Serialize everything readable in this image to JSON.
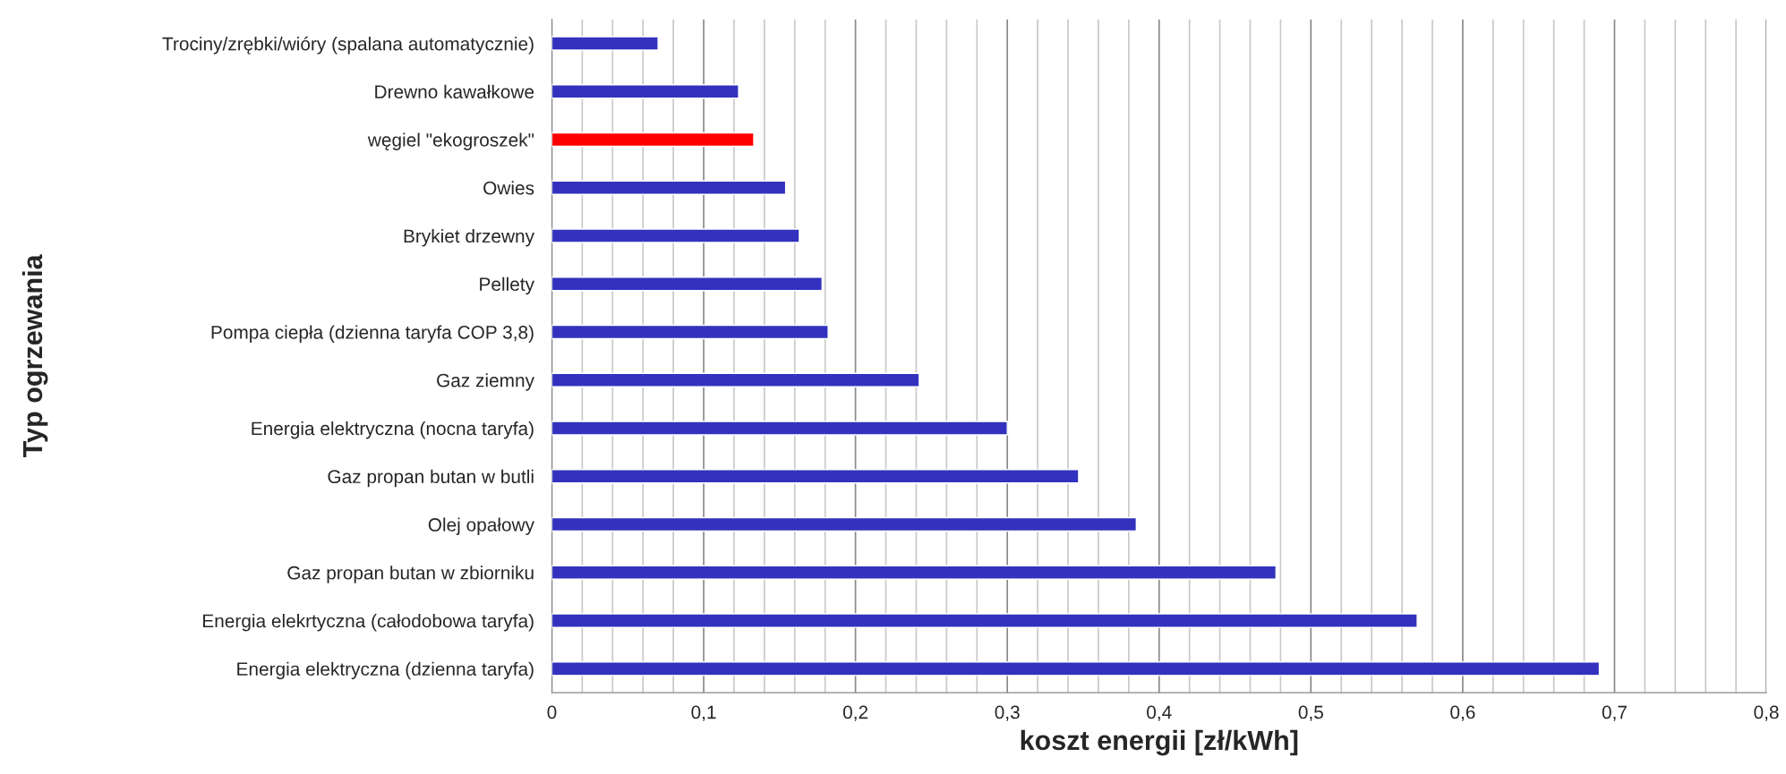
{
  "chart_data": {
    "type": "bar",
    "orientation": "horizontal",
    "xlabel": "koszt energii [zł/kWh]",
    "ylabel": "Typ ogrzewania",
    "categories": [
      "Trociny/zrębki/wióry (spalana automatycznie)",
      "Drewno kawałkowe",
      "węgiel \"ekogroszek\"",
      "Owies",
      "Brykiet drzewny",
      "Pellety",
      "Pompa ciepła (dzienna taryfa COP 3,8)",
      "Gaz ziemny",
      "Energia elektryczna (nocna taryfa)",
      "Gaz propan butan w butli",
      "Olej opałowy",
      "Gaz propan butan w zbiorniku",
      "Energia elekrtyczna (całodobowa taryfa)",
      "Energia elektryczna (dzienna taryfa)"
    ],
    "values": [
      0.07,
      0.123,
      0.133,
      0.154,
      0.163,
      0.178,
      0.182,
      0.242,
      0.3,
      0.347,
      0.385,
      0.477,
      0.57,
      0.69
    ],
    "colors": [
      "#3232be",
      "#3232be",
      "#ff0000",
      "#3232be",
      "#3232be",
      "#3232be",
      "#3232be",
      "#3232be",
      "#3232be",
      "#3232be",
      "#3232be",
      "#3232be",
      "#3232be",
      "#3232be"
    ],
    "xlim": [
      0,
      0.8
    ],
    "xticks": [
      0,
      {
        "value": 0.02,
        "label": null
      },
      {
        "value": 0.04,
        "label": null
      },
      {
        "value": 0.06,
        "label": null
      },
      {
        "value": 0.08,
        "label": null
      },
      {
        "value": 0.1,
        "label": "0,1"
      },
      {
        "value": 0.12,
        "label": null
      },
      {
        "value": 0.14,
        "label": null
      },
      {
        "value": 0.16,
        "label": null
      },
      {
        "value": 0.18,
        "label": null
      },
      {
        "value": 0.2,
        "label": "0,2"
      },
      {
        "value": 0.22,
        "label": null
      },
      {
        "value": 0.24,
        "label": null
      },
      {
        "value": 0.26,
        "label": null
      },
      {
        "value": 0.28,
        "label": null
      },
      {
        "value": 0.3,
        "label": "0,3"
      },
      {
        "value": 0.32,
        "label": null
      },
      {
        "value": 0.34,
        "label": null
      },
      {
        "value": 0.36,
        "label": null
      },
      {
        "value": 0.38,
        "label": null
      },
      {
        "value": 0.4,
        "label": "0,4"
      },
      {
        "value": 0.42,
        "label": null
      },
      {
        "value": 0.44,
        "label": null
      },
      {
        "value": 0.46,
        "label": null
      },
      {
        "value": 0.48,
        "label": null
      },
      {
        "value": 0.5,
        "label": "0,5"
      },
      {
        "value": 0.52,
        "label": null
      },
      {
        "value": 0.54,
        "label": null
      },
      {
        "value": 0.56,
        "label": null
      },
      {
        "value": 0.58,
        "label": null
      },
      {
        "value": 0.6,
        "label": "0,6"
      },
      {
        "value": 0.62,
        "label": null
      },
      {
        "value": 0.64,
        "label": null
      },
      {
        "value": 0.66,
        "label": null
      },
      {
        "value": 0.68,
        "label": null
      },
      {
        "value": 0.7,
        "label": "0,7"
      },
      {
        "value": 0.72,
        "label": null
      },
      {
        "value": 0.74,
        "label": null
      },
      {
        "value": 0.76,
        "label": null
      },
      {
        "value": 0.78,
        "label": null
      },
      {
        "value": 0.8,
        "label": "0,8"
      }
    ],
    "grid": "x"
  }
}
